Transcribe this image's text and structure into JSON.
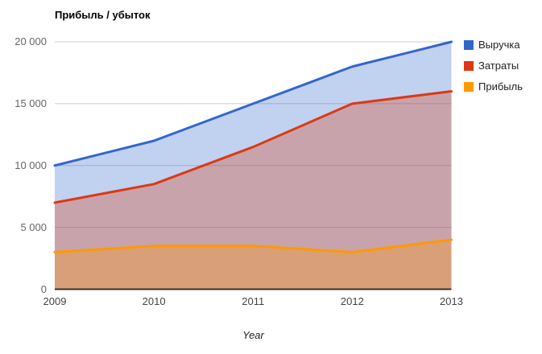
{
  "chart_data": {
    "type": "area",
    "stacked": false,
    "title": "Прибыль / убыток",
    "xlabel": "Year",
    "ylabel": "",
    "x": [
      2009,
      2010,
      2011,
      2012,
      2013
    ],
    "xtick_labels": [
      "2009",
      "2010",
      "2011",
      "2012",
      "2013"
    ],
    "series": [
      {
        "name": "Выручка",
        "color": "#3366CC",
        "values": [
          10000,
          12000,
          15000,
          18000,
          20000
        ]
      },
      {
        "name": "Затраты",
        "color": "#DC3912",
        "values": [
          7000,
          8500,
          11500,
          15000,
          16000
        ]
      },
      {
        "name": "Прибыль",
        "color": "#FF9900",
        "values": [
          3000,
          3500,
          3500,
          3000,
          4000
        ]
      }
    ],
    "ylim": [
      0,
      20000
    ],
    "yticks": [
      0,
      5000,
      10000,
      15000,
      20000
    ],
    "ytick_labels": [
      "0",
      "5 000",
      "10 000",
      "15 000",
      "20 000"
    ],
    "grid": true,
    "legend_position": "right",
    "area_opacity": 0.3,
    "gridline_color": "#cccccc",
    "baseline_color": "#333333"
  }
}
